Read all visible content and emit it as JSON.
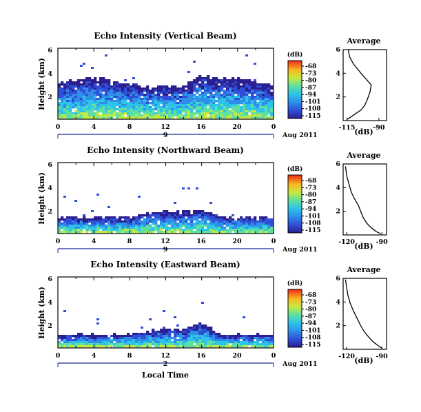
{
  "footer": {
    "date_label": "Aug 2011",
    "xlabel": "Local Time"
  },
  "colorbar": {
    "unit_label": "(dB)",
    "tick_labels": [
      "-68",
      "-73",
      "-80",
      "-87",
      "-94",
      "-101",
      "-108",
      "-115"
    ]
  },
  "chart_data": [
    {
      "type": "heatmap",
      "title": "Echo Intensity (Vertical Beam)",
      "ylabel": "Height (km)",
      "xlabel": "",
      "x_tick_labels": [
        "0",
        "4",
        "8",
        "12",
        "16",
        "20",
        "0"
      ],
      "y_tick_labels": [
        "2",
        "4",
        "6"
      ],
      "xlim": [
        0,
        24
      ],
      "ylim": [
        0,
        6.2
      ],
      "clim": [
        -115,
        -68
      ],
      "day_label": "9",
      "side_profile": {
        "title": "Average",
        "xlabel": "(dB)",
        "x_tick_labels": [
          "-115",
          "-90"
        ],
        "y_tick_labels": [
          "2",
          "4",
          "6"
        ],
        "xlim": [
          -118,
          -84
        ],
        "ylim": [
          0,
          6
        ],
        "values": [
          [
            -115,
            0.1
          ],
          [
            -112,
            0.3
          ],
          [
            -108,
            0.6
          ],
          [
            -104,
            0.9
          ],
          [
            -101,
            1.3
          ],
          [
            -99,
            1.8
          ],
          [
            -97,
            2.4
          ],
          [
            -96,
            3.0
          ],
          [
            -104,
            4.0
          ],
          [
            -110,
            4.8
          ],
          [
            -113,
            5.4
          ],
          [
            -114,
            6.0
          ]
        ]
      }
    },
    {
      "type": "heatmap",
      "title": "Echo Intensity (Northward Beam)",
      "ylabel": "Height (km)",
      "xlabel": "",
      "x_tick_labels": [
        "0",
        "4",
        "8",
        "12",
        "16",
        "20",
        "0"
      ],
      "y_tick_labels": [
        "2",
        "4",
        "6"
      ],
      "xlim": [
        0,
        24
      ],
      "ylim": [
        0,
        6.2
      ],
      "clim": [
        -115,
        -68
      ],
      "day_label": "9",
      "side_profile": {
        "title": "Average",
        "xlabel": "(dB)",
        "x_tick_labels": [
          "-120",
          "-90"
        ],
        "y_tick_labels": [
          "2",
          "4",
          "6"
        ],
        "xlim": [
          -123,
          -86
        ],
        "ylim": [
          0,
          6
        ],
        "values": [
          [
            -91,
            0.1
          ],
          [
            -95,
            0.3
          ],
          [
            -99,
            0.6
          ],
          [
            -103,
            1.0
          ],
          [
            -106,
            1.5
          ],
          [
            -108,
            2.0
          ],
          [
            -110,
            2.5
          ],
          [
            -113,
            3.0
          ],
          [
            -116,
            3.6
          ],
          [
            -118,
            4.3
          ],
          [
            -120,
            5.0
          ],
          [
            -121,
            5.8
          ]
        ]
      }
    },
    {
      "type": "heatmap",
      "title": "Echo Intensity (Eastward Beam)",
      "ylabel": "Height (km)",
      "xlabel": "Local Time",
      "x_tick_labels": [
        "0",
        "4",
        "8",
        "12",
        "16",
        "20",
        "0"
      ],
      "y_tick_labels": [
        "2",
        "4",
        "6"
      ],
      "xlim": [
        0,
        24
      ],
      "ylim": [
        0,
        6.2
      ],
      "clim": [
        -115,
        -68
      ],
      "day_label": "2",
      "side_profile": {
        "title": "Average",
        "xlabel": "(dB)",
        "x_tick_labels": [
          "-120",
          "-90"
        ],
        "y_tick_labels": [
          "2",
          "4",
          "6"
        ],
        "xlim": [
          -123,
          -86
        ],
        "ylim": [
          0,
          6
        ],
        "values": [
          [
            -90,
            0.1
          ],
          [
            -93,
            0.3
          ],
          [
            -97,
            0.6
          ],
          [
            -101,
            1.0
          ],
          [
            -105,
            1.5
          ],
          [
            -108,
            2.0
          ],
          [
            -111,
            2.6
          ],
          [
            -114,
            3.2
          ],
          [
            -117,
            3.9
          ],
          [
            -119,
            4.6
          ],
          [
            -120,
            5.2
          ],
          [
            -121,
            5.9
          ]
        ]
      }
    }
  ]
}
